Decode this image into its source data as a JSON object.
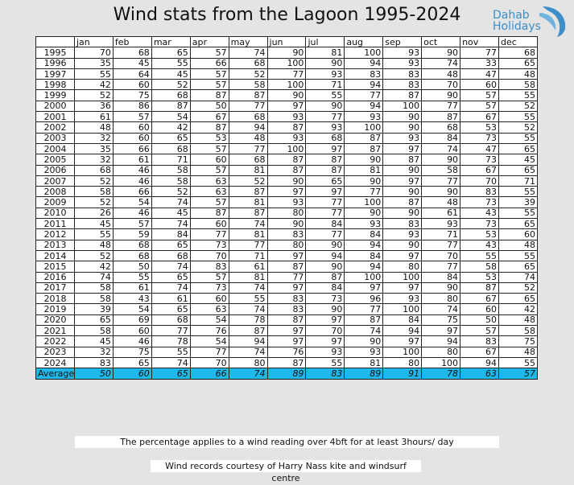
{
  "title": "Wind stats from the Lagoon 1995-2024",
  "logo": {
    "line1": "Dahab",
    "line2": "Holidays",
    "icon": "wave-swoosh-icon",
    "color": "#3d8fc9"
  },
  "table": {
    "months": [
      "jan",
      "feb",
      "mar",
      "apr",
      "may",
      "jun",
      "jul",
      "aug",
      "sep",
      "oct",
      "nov",
      "dec"
    ],
    "rows": [
      {
        "year": "1995",
        "values": [
          "70",
          "68",
          "65",
          "57",
          "74",
          "90",
          "81",
          "100",
          "93",
          "90",
          "77",
          "68"
        ]
      },
      {
        "year": "1996",
        "values": [
          "35",
          "45",
          "55",
          "66",
          "68",
          "100",
          "90",
          "94",
          "93",
          "74",
          "33",
          "65"
        ]
      },
      {
        "year": "1997",
        "values": [
          "55",
          "64",
          "45",
          "57",
          "52",
          "77",
          "93",
          "83",
          "83",
          "48",
          "47",
          "48"
        ]
      },
      {
        "year": "1998",
        "values": [
          "42",
          "60",
          "52",
          "57",
          "58",
          "100",
          "71",
          "94",
          "83",
          "70",
          "60",
          "58"
        ]
      },
      {
        "year": "1999",
        "values": [
          "52",
          "75",
          "68",
          "87",
          "87",
          "90",
          "55",
          "77",
          "87",
          "90",
          "57",
          "55"
        ]
      },
      {
        "year": "2000",
        "values": [
          "36",
          "86",
          "87",
          "50",
          "77",
          "97",
          "90",
          "94",
          "100",
          "77",
          "57",
          "52"
        ]
      },
      {
        "year": "2001",
        "values": [
          "61",
          "57",
          "54",
          "67",
          "68",
          "93",
          "77",
          "93",
          "90",
          "87",
          "67",
          "55"
        ]
      },
      {
        "year": "2002",
        "values": [
          "48",
          "60",
          "42",
          "87",
          "94",
          "87",
          "93",
          "100",
          "90",
          "68",
          "53",
          "52"
        ]
      },
      {
        "year": "2003",
        "values": [
          "32",
          "60",
          "65",
          "53",
          "48",
          "93",
          "68",
          "87",
          "93",
          "84",
          "73",
          "55"
        ]
      },
      {
        "year": "2004",
        "values": [
          "35",
          "66",
          "68",
          "57",
          "77",
          "100",
          "97",
          "87",
          "97",
          "74",
          "47",
          "65"
        ]
      },
      {
        "year": "2005",
        "values": [
          "32",
          "61",
          "71",
          "60",
          "68",
          "87",
          "87",
          "90",
          "87",
          "90",
          "73",
          "45"
        ]
      },
      {
        "year": "2006",
        "values": [
          "68",
          "46",
          "58",
          "57",
          "81",
          "87",
          "87",
          "81",
          "90",
          "58",
          "67",
          "65"
        ]
      },
      {
        "year": "2007",
        "values": [
          "52",
          "46",
          "58",
          "63",
          "52",
          "90",
          "65",
          "90",
          "97",
          "77",
          "70",
          "71"
        ]
      },
      {
        "year": "2008",
        "values": [
          "58",
          "66",
          "52",
          "63",
          "87",
          "97",
          "97",
          "77",
          "90",
          "90",
          "83",
          "55"
        ]
      },
      {
        "year": "2009",
        "values": [
          "52",
          "54",
          "74",
          "57",
          "81",
          "93",
          "77",
          "100",
          "87",
          "48",
          "73",
          "39"
        ]
      },
      {
        "year": "2010",
        "values": [
          "26",
          "46",
          "45",
          "87",
          "87",
          "80",
          "77",
          "90",
          "90",
          "61",
          "43",
          "55"
        ]
      },
      {
        "year": "2011",
        "values": [
          "45",
          "57",
          "74",
          "60",
          "74",
          "90",
          "84",
          "93",
          "83",
          "93",
          "73",
          "65"
        ]
      },
      {
        "year": "2012",
        "values": [
          "55",
          "59",
          "84",
          "77",
          "81",
          "83",
          "77",
          "84",
          "93",
          "71",
          "53",
          "60"
        ]
      },
      {
        "year": "2013",
        "values": [
          "48",
          "68",
          "65",
          "73",
          "77",
          "80",
          "90",
          "94",
          "90",
          "77",
          "43",
          "48"
        ]
      },
      {
        "year": "2014",
        "values": [
          "52",
          "68",
          "68",
          "70",
          "71",
          "97",
          "94",
          "84",
          "97",
          "70",
          "55",
          "55"
        ]
      },
      {
        "year": "2015",
        "values": [
          "42",
          "50",
          "74",
          "83",
          "61",
          "87",
          "90",
          "94",
          "80",
          "77",
          "58",
          "65"
        ]
      },
      {
        "year": "2016",
        "values": [
          "74",
          "55",
          "65",
          "57",
          "81",
          "77",
          "87",
          "100",
          "100",
          "84",
          "53",
          "74"
        ]
      },
      {
        "year": "2017",
        "values": [
          "58",
          "61",
          "74",
          "73",
          "74",
          "97",
          "84",
          "97",
          "97",
          "90",
          "87",
          "52"
        ]
      },
      {
        "year": "2018",
        "values": [
          "58",
          "43",
          "61",
          "60",
          "55",
          "83",
          "73",
          "96",
          "93",
          "80",
          "67",
          "65"
        ]
      },
      {
        "year": "2019",
        "values": [
          "39",
          "54",
          "65",
          "63",
          "74",
          "83",
          "90",
          "77",
          "100",
          "74",
          "60",
          "42"
        ]
      },
      {
        "year": "2020",
        "values": [
          "65",
          "69",
          "68",
          "54",
          "78",
          "87",
          "97",
          "87",
          "84",
          "75",
          "50",
          "48"
        ]
      },
      {
        "year": "2021",
        "values": [
          "58",
          "60",
          "77",
          "76",
          "87",
          "97",
          "70",
          "74",
          "94",
          "97",
          "57",
          "58"
        ]
      },
      {
        "year": "2022",
        "values": [
          "45",
          "46",
          "78",
          "54",
          "94",
          "97",
          "97",
          "90",
          "97",
          "94",
          "83",
          "75"
        ]
      },
      {
        "year": "2023",
        "values": [
          "32",
          "75",
          "55",
          "77",
          "74",
          "76",
          "93",
          "93",
          "100",
          "80",
          "67",
          "48"
        ]
      },
      {
        "year": "2024",
        "values": [
          "83",
          "65",
          "74",
          "70",
          "80",
          "87",
          "55",
          "81",
          "80",
          "100",
          "94",
          "55"
        ]
      }
    ],
    "average": {
      "label": "Average",
      "values": [
        "50",
        "60",
        "65",
        "66",
        "74",
        "89",
        "83",
        "89",
        "91",
        "78",
        "63",
        "57"
      ]
    },
    "average_color": "#1fb8ea"
  },
  "notes": {
    "percentage": "The percentage applies to a wind reading over 4bft for at least 3hours/ day",
    "credits": "Wind records courtesy of Harry Nass kite and windsurf centre"
  }
}
